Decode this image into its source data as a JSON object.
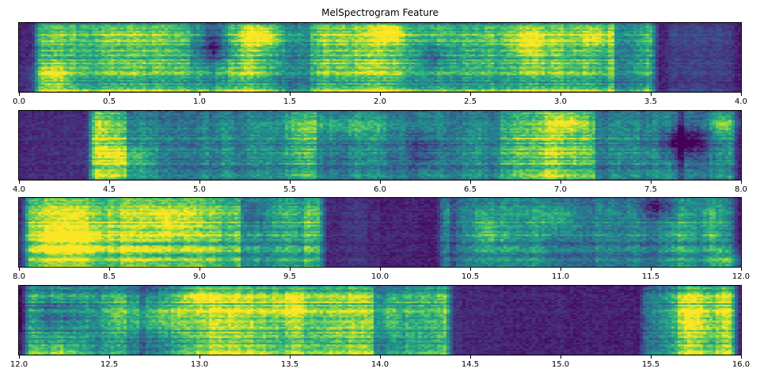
{
  "title": "MelSpectrogram Feature",
  "style": {
    "background": "#ffffff",
    "axis_color": "#000000",
    "text_color": "#000000",
    "colormap_name": "viridis",
    "viridis_stops": [
      "#440154",
      "#482878",
      "#3e4a89",
      "#31688e",
      "#26828e",
      "#1f9e89",
      "#35b779",
      "#6ece58",
      "#b5de2b",
      "#fde725"
    ]
  },
  "chart_data": {
    "type": "heatmap",
    "title": "MelSpectrogram Feature",
    "subtitle": "",
    "xlabel": "",
    "ylabel": "",
    "colormap": "viridis",
    "n_panels": 4,
    "tick_step": 0.5,
    "panels": [
      {
        "x_start": 0.0,
        "x_end": 4.0,
        "seed": 101,
        "tick_labels": [
          "0.0",
          "0.5",
          "1.0",
          "1.5",
          "2.0",
          "2.5",
          "3.0",
          "3.5",
          "4.0"
        ],
        "regions": [
          {
            "from": 0.06,
            "to": 3.56,
            "level": 1.0
          },
          {
            "from": 3.56,
            "to": 4.0,
            "level": 0.3
          }
        ],
        "features": [
          {
            "t": 1.08,
            "fy": 0.3,
            "rt": 0.1,
            "rf": 0.3,
            "d": -0.5
          },
          {
            "t": 2.3,
            "fy": 0.5,
            "rt": 0.06,
            "rf": 0.2,
            "d": -0.3
          },
          {
            "t": 0.18,
            "fy": 0.8,
            "rt": 0.12,
            "rf": 0.2,
            "d": 0.3
          },
          {
            "t": 1.35,
            "fy": 0.2,
            "rt": 0.1,
            "rf": 0.15,
            "d": 0.3
          },
          {
            "t": 2.05,
            "fy": 0.15,
            "rt": 0.08,
            "rf": 0.12,
            "d": 0.28
          },
          {
            "t": 2.82,
            "fy": 0.3,
            "rt": 0.12,
            "rf": 0.2,
            "d": 0.25
          },
          {
            "t": 3.2,
            "fy": 0.2,
            "rt": 0.08,
            "rf": 0.15,
            "d": 0.22
          }
        ]
      },
      {
        "x_start": 4.0,
        "x_end": 8.0,
        "seed": 202,
        "tick_labels": [
          "4.0",
          "4.5",
          "5.0",
          "5.5",
          "6.0",
          "6.5",
          "7.0",
          "7.5",
          "8.0"
        ],
        "regions": [
          {
            "from": 4.0,
            "to": 4.36,
            "level": 0.12
          },
          {
            "from": 4.36,
            "to": 8.0,
            "level": 1.0
          }
        ],
        "features": [
          {
            "t": 7.68,
            "fy": 0.45,
            "rt": 0.13,
            "rf": 0.22,
            "d": -0.55
          },
          {
            "t": 6.25,
            "fy": 0.55,
            "rt": 0.1,
            "rf": 0.25,
            "d": -0.25
          },
          {
            "t": 7.9,
            "fy": 0.18,
            "rt": 0.09,
            "rf": 0.14,
            "d": 0.32
          },
          {
            "t": 5.8,
            "fy": 0.2,
            "rt": 0.3,
            "rf": 0.16,
            "d": 0.22
          },
          {
            "t": 4.6,
            "fy": 0.7,
            "rt": 0.15,
            "rf": 0.2,
            "d": 0.25
          },
          {
            "t": 7.05,
            "fy": 0.15,
            "rt": 0.1,
            "rf": 0.12,
            "d": 0.25
          }
        ]
      },
      {
        "x_start": 8.0,
        "x_end": 12.0,
        "seed": 303,
        "tick_labels": [
          "8.0",
          "8.5",
          "9.0",
          "9.5",
          "10.0",
          "10.5",
          "11.0",
          "11.5",
          "12.0"
        ],
        "regions": [
          {
            "from": 8.0,
            "to": 9.72,
            "level": 1.0
          },
          {
            "from": 9.72,
            "to": 10.3,
            "level": 0.15
          },
          {
            "from": 10.3,
            "to": 12.0,
            "level": 1.0
          }
        ],
        "features": [
          {
            "t": 8.3,
            "fy": 0.6,
            "rt": 0.25,
            "rf": 0.25,
            "d": 0.28
          },
          {
            "t": 8.85,
            "fy": 0.35,
            "rt": 0.08,
            "rf": 0.2,
            "d": 0.22
          },
          {
            "t": 11.0,
            "fy": 0.3,
            "rt": 0.1,
            "rf": 0.2,
            "d": 0.22
          },
          {
            "t": 10.6,
            "fy": 0.5,
            "rt": 0.08,
            "rf": 0.25,
            "d": 0.2
          },
          {
            "t": 11.55,
            "fy": 0.15,
            "rt": 0.12,
            "rf": 0.15,
            "d": -0.3
          },
          {
            "t": 9.3,
            "fy": 0.25,
            "rt": 0.06,
            "rf": 0.2,
            "d": -0.25
          },
          {
            "t": 11.95,
            "fy": 0.9,
            "rt": 0.08,
            "rf": 0.12,
            "d": 0.3
          }
        ]
      },
      {
        "x_start": 12.0,
        "x_end": 16.0,
        "seed": 404,
        "tick_labels": [
          "12.0",
          "12.5",
          "13.0",
          "13.5",
          "14.0",
          "14.5",
          "15.0",
          "15.5",
          "16.0"
        ],
        "regions": [
          {
            "from": 12.0,
            "to": 14.42,
            "level": 1.0
          },
          {
            "from": 14.42,
            "to": 15.42,
            "level": 0.12
          },
          {
            "from": 15.42,
            "to": 16.0,
            "level": 1.0
          }
        ],
        "features": [
          {
            "t": 12.2,
            "fy": 0.4,
            "rt": 0.16,
            "rf": 0.35,
            "d": -0.45
          },
          {
            "t": 12.75,
            "fy": 0.45,
            "rt": 0.2,
            "rf": 0.25,
            "d": 0.3
          },
          {
            "t": 13.5,
            "fy": 0.3,
            "rt": 0.1,
            "rf": 0.2,
            "d": 0.22
          },
          {
            "t": 14.05,
            "fy": 0.45,
            "rt": 0.07,
            "rf": 0.3,
            "d": 0.22
          },
          {
            "t": 13.0,
            "fy": 0.15,
            "rt": 0.08,
            "rf": 0.12,
            "d": 0.22
          },
          {
            "t": 15.75,
            "fy": 0.5,
            "rt": 0.12,
            "rf": 0.3,
            "d": 0.15
          }
        ]
      }
    ]
  }
}
